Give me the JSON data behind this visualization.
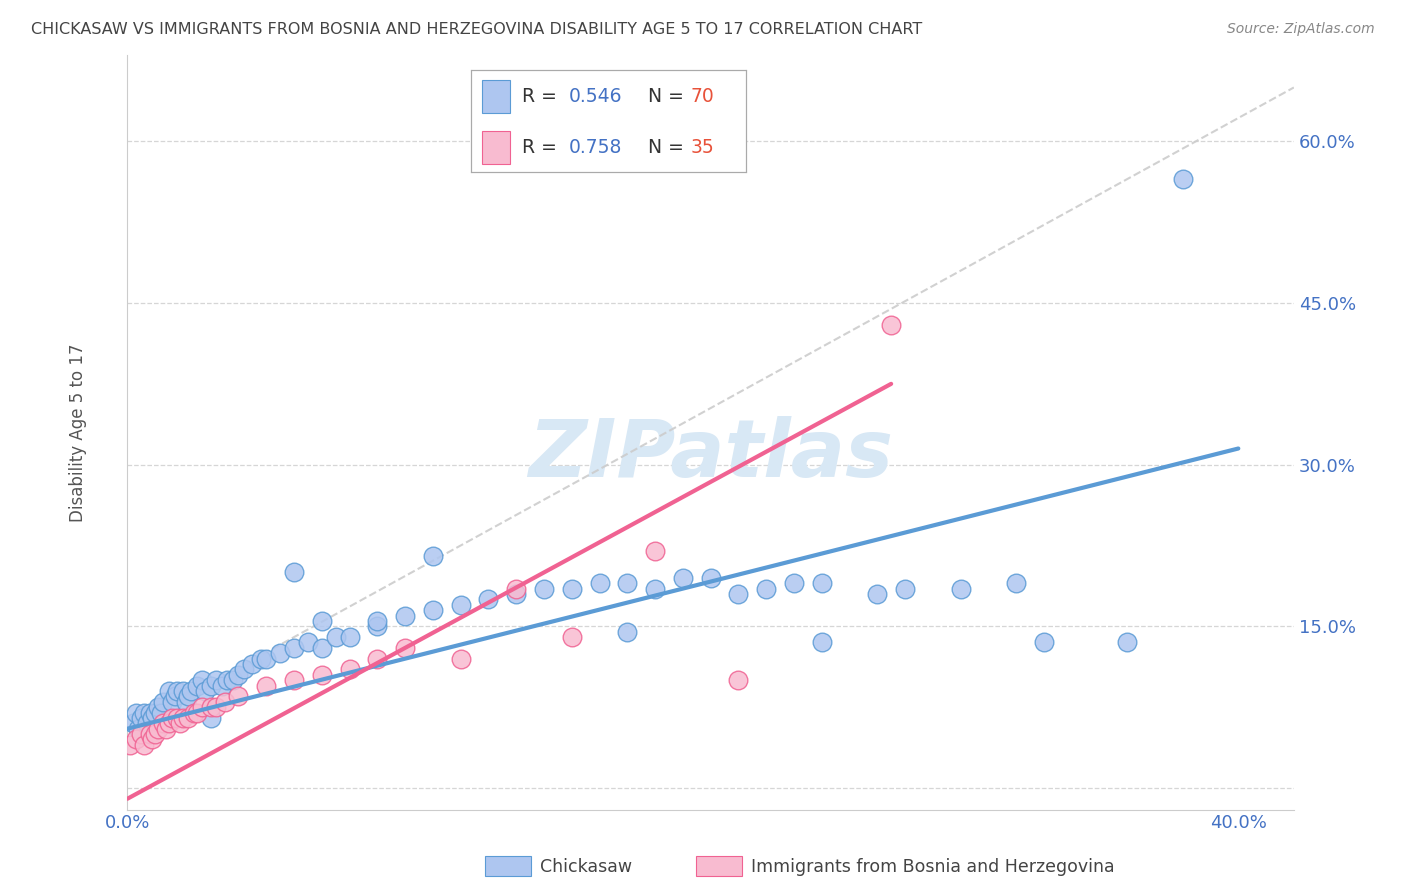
{
  "title": "CHICKASAW VS IMMIGRANTS FROM BOSNIA AND HERZEGOVINA DISABILITY AGE 5 TO 17 CORRELATION CHART",
  "source": "Source: ZipAtlas.com",
  "ylabel": "Disability Age 5 to 17",
  "xlim": [
    0.0,
    0.42
  ],
  "ylim": [
    -0.02,
    0.68
  ],
  "xticks": [
    0.0,
    0.1,
    0.2,
    0.3,
    0.4
  ],
  "yticks": [
    0.0,
    0.15,
    0.3,
    0.45,
    0.6
  ],
  "watermark": "ZIPatlas",
  "blue_color": "#5b9bd5",
  "pink_color": "#f06292",
  "blue_fill": "#aec6f0",
  "pink_fill": "#f8bbd0",
  "background_color": "#ffffff",
  "grid_color": "#cccccc",
  "legend_R_color": "#4472c4",
  "legend_N_color": "#e8523a",
  "blue_line": [
    0.0,
    0.4,
    0.055,
    0.315
  ],
  "pink_line": [
    0.0,
    0.275,
    -0.01,
    0.375
  ],
  "grey_dash": [
    0.0,
    0.42,
    0.055,
    0.65
  ],
  "blue_x": [
    0.002,
    0.003,
    0.004,
    0.005,
    0.006,
    0.007,
    0.008,
    0.009,
    0.01,
    0.011,
    0.012,
    0.013,
    0.015,
    0.016,
    0.017,
    0.018,
    0.02,
    0.021,
    0.022,
    0.023,
    0.025,
    0.027,
    0.028,
    0.03,
    0.032,
    0.034,
    0.036,
    0.038,
    0.04,
    0.042,
    0.045,
    0.048,
    0.05,
    0.055,
    0.06,
    0.065,
    0.07,
    0.075,
    0.08,
    0.09,
    0.1,
    0.11,
    0.12,
    0.13,
    0.14,
    0.15,
    0.16,
    0.17,
    0.18,
    0.19,
    0.2,
    0.21,
    0.22,
    0.23,
    0.24,
    0.25,
    0.27,
    0.28,
    0.3,
    0.32,
    0.06,
    0.09,
    0.11,
    0.18,
    0.25,
    0.33,
    0.36,
    0.38,
    0.03,
    0.07
  ],
  "blue_y": [
    0.06,
    0.07,
    0.055,
    0.065,
    0.07,
    0.06,
    0.07,
    0.065,
    0.07,
    0.075,
    0.07,
    0.08,
    0.09,
    0.08,
    0.085,
    0.09,
    0.09,
    0.08,
    0.085,
    0.09,
    0.095,
    0.1,
    0.09,
    0.095,
    0.1,
    0.095,
    0.1,
    0.1,
    0.105,
    0.11,
    0.115,
    0.12,
    0.12,
    0.125,
    0.13,
    0.135,
    0.13,
    0.14,
    0.14,
    0.15,
    0.16,
    0.165,
    0.17,
    0.175,
    0.18,
    0.185,
    0.185,
    0.19,
    0.19,
    0.185,
    0.195,
    0.195,
    0.18,
    0.185,
    0.19,
    0.19,
    0.18,
    0.185,
    0.185,
    0.19,
    0.2,
    0.155,
    0.215,
    0.145,
    0.135,
    0.135,
    0.135,
    0.565,
    0.065,
    0.155
  ],
  "pink_x": [
    0.001,
    0.003,
    0.005,
    0.006,
    0.008,
    0.009,
    0.01,
    0.011,
    0.013,
    0.014,
    0.015,
    0.016,
    0.018,
    0.019,
    0.02,
    0.022,
    0.024,
    0.025,
    0.027,
    0.03,
    0.032,
    0.035,
    0.04,
    0.05,
    0.06,
    0.07,
    0.08,
    0.09,
    0.1,
    0.12,
    0.14,
    0.16,
    0.19,
    0.22,
    0.275
  ],
  "pink_y": [
    0.04,
    0.045,
    0.05,
    0.04,
    0.05,
    0.045,
    0.05,
    0.055,
    0.06,
    0.055,
    0.06,
    0.065,
    0.065,
    0.06,
    0.065,
    0.065,
    0.07,
    0.07,
    0.075,
    0.075,
    0.075,
    0.08,
    0.085,
    0.095,
    0.1,
    0.105,
    0.11,
    0.12,
    0.13,
    0.12,
    0.185,
    0.14,
    0.22,
    0.1,
    0.43
  ]
}
